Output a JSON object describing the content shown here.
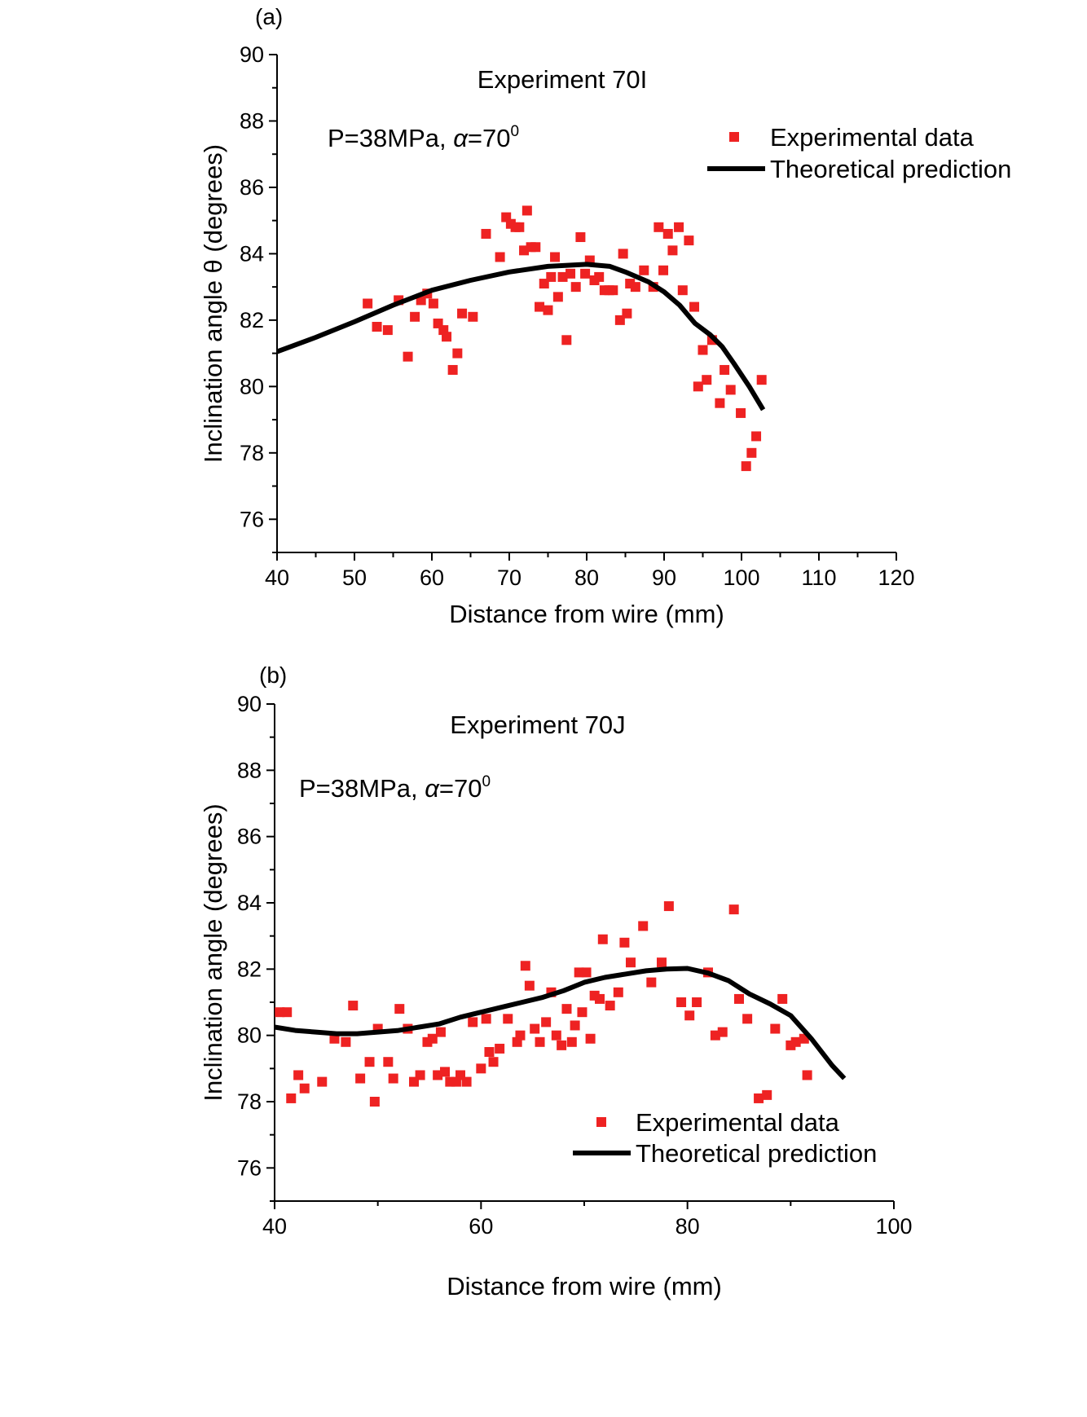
{
  "chart_data": [
    {
      "type": "scatter",
      "panel_label": "(a)",
      "annotation_title": "Experiment 70I",
      "params": {
        "prefix": "P=38MPa, ",
        "alpha": "α",
        "suffix": "=70",
        "sup": "0"
      },
      "xlabel": "Distance from wire (mm)",
      "ylabel_prefix": "Inclination angle ",
      "ylabel_symbol": "θ",
      "ylabel_suffix": " (degrees)",
      "xlim": [
        40,
        120
      ],
      "ylim": [
        75,
        90
      ],
      "xticks": [
        40,
        50,
        60,
        70,
        80,
        90,
        100,
        110,
        120
      ],
      "yticks": [
        76,
        78,
        80,
        82,
        84,
        86,
        88,
        90
      ],
      "legend_position": "top-right",
      "legend": {
        "experimental": "Experimental data",
        "theoretical": "Theoretical prediction"
      },
      "colors": {
        "experimental": "#ee2222",
        "theoretical": "#000000"
      },
      "series": [
        {
          "name": "Experimental data",
          "kind": "scatter",
          "points": [
            [
              51.7,
              82.5
            ],
            [
              52.9,
              81.8
            ],
            [
              54.3,
              81.7
            ],
            [
              55.7,
              82.6
            ],
            [
              56.9,
              80.9
            ],
            [
              57.8,
              82.1
            ],
            [
              58.6,
              82.6
            ],
            [
              59.4,
              82.8
            ],
            [
              60.2,
              82.5
            ],
            [
              60.8,
              81.9
            ],
            [
              61.5,
              81.7
            ],
            [
              61.9,
              81.5
            ],
            [
              62.7,
              80.5
            ],
            [
              63.3,
              81.0
            ],
            [
              63.9,
              82.2
            ],
            [
              65.3,
              82.1
            ],
            [
              67.0,
              84.6
            ],
            [
              68.8,
              83.9
            ],
            [
              69.6,
              85.1
            ],
            [
              70.2,
              84.9
            ],
            [
              70.8,
              84.8
            ],
            [
              71.3,
              84.8
            ],
            [
              71.9,
              84.1
            ],
            [
              72.3,
              85.3
            ],
            [
              72.8,
              84.2
            ],
            [
              73.4,
              84.2
            ],
            [
              73.9,
              82.4
            ],
            [
              74.5,
              83.1
            ],
            [
              75.0,
              82.3
            ],
            [
              75.4,
              83.3
            ],
            [
              75.9,
              83.9
            ],
            [
              76.3,
              82.7
            ],
            [
              76.9,
              83.3
            ],
            [
              77.4,
              81.4
            ],
            [
              77.9,
              83.4
            ],
            [
              78.6,
              83.0
            ],
            [
              79.2,
              84.5
            ],
            [
              79.8,
              83.4
            ],
            [
              80.4,
              83.8
            ],
            [
              81.0,
              83.2
            ],
            [
              81.6,
              83.3
            ],
            [
              82.3,
              82.9
            ],
            [
              82.9,
              82.9
            ],
            [
              83.4,
              82.9
            ],
            [
              84.3,
              82.0
            ],
            [
              84.7,
              84.0
            ],
            [
              85.2,
              82.2
            ],
            [
              85.6,
              83.1
            ],
            [
              86.3,
              83.0
            ],
            [
              87.4,
              83.5
            ],
            [
              88.6,
              83.0
            ],
            [
              89.3,
              84.8
            ],
            [
              89.9,
              83.5
            ],
            [
              90.5,
              84.6
            ],
            [
              91.1,
              84.1
            ],
            [
              91.9,
              84.8
            ],
            [
              92.4,
              82.9
            ],
            [
              93.2,
              84.4
            ],
            [
              93.9,
              82.4
            ],
            [
              94.4,
              80.0
            ],
            [
              95.0,
              81.1
            ],
            [
              95.5,
              80.2
            ],
            [
              96.2,
              81.4
            ],
            [
              97.2,
              79.5
            ],
            [
              97.8,
              80.5
            ],
            [
              98.6,
              79.9
            ],
            [
              99.9,
              79.2
            ],
            [
              100.6,
              77.6
            ],
            [
              101.3,
              78.0
            ],
            [
              101.9,
              78.5
            ],
            [
              102.6,
              80.2
            ]
          ]
        },
        {
          "name": "Theoretical prediction",
          "kind": "line",
          "points": [
            [
              40.0,
              81.05
            ],
            [
              42.0,
              81.22
            ],
            [
              45.0,
              81.48
            ],
            [
              50.0,
              81.95
            ],
            [
              55.0,
              82.45
            ],
            [
              60.0,
              82.9
            ],
            [
              65.0,
              83.2
            ],
            [
              70.0,
              83.45
            ],
            [
              75.0,
              83.62
            ],
            [
              80.0,
              83.68
            ],
            [
              83.0,
              83.62
            ],
            [
              85.0,
              83.45
            ],
            [
              88.0,
              83.15
            ],
            [
              90.0,
              82.85
            ],
            [
              92.0,
              82.45
            ],
            [
              94.0,
              81.9
            ],
            [
              96.0,
              81.55
            ],
            [
              97.5,
              81.2
            ],
            [
              99.0,
              80.7
            ],
            [
              101.0,
              80.0
            ],
            [
              102.8,
              79.3
            ]
          ]
        }
      ]
    },
    {
      "type": "scatter",
      "panel_label": "(b)",
      "annotation_title": "Experiment 70J",
      "params": {
        "prefix": "P=38MPa, ",
        "alpha": "α",
        "suffix": "=70",
        "sup": "0"
      },
      "xlabel": "Distance from wire (mm)",
      "ylabel_prefix": "Inclination angle (degrees)",
      "ylabel_symbol": "",
      "ylabel_suffix": "",
      "xlim": [
        40,
        100
      ],
      "ylim": [
        75,
        90
      ],
      "xticks": [
        40,
        60,
        80,
        100
      ],
      "yticks": [
        76,
        78,
        80,
        82,
        84,
        86,
        88,
        90
      ],
      "legend_position": "bottom-right",
      "legend": {
        "experimental": "Experimental data",
        "theoretical": "Theoretical prediction"
      },
      "colors": {
        "experimental": "#ee2222",
        "theoretical": "#000000"
      },
      "series": [
        {
          "name": "Experimental data",
          "kind": "scatter",
          "points": [
            [
              40.5,
              80.7
            ],
            [
              41.2,
              80.7
            ],
            [
              41.6,
              78.1
            ],
            [
              42.3,
              78.8
            ],
            [
              42.9,
              78.4
            ],
            [
              44.6,
              78.6
            ],
            [
              45.8,
              79.9
            ],
            [
              46.9,
              79.8
            ],
            [
              47.6,
              80.9
            ],
            [
              48.3,
              78.7
            ],
            [
              49.2,
              79.2
            ],
            [
              49.7,
              78.0
            ],
            [
              50.0,
              80.2
            ],
            [
              51.0,
              79.2
            ],
            [
              51.5,
              78.7
            ],
            [
              52.1,
              80.8
            ],
            [
              52.9,
              80.2
            ],
            [
              53.5,
              78.6
            ],
            [
              54.1,
              78.8
            ],
            [
              54.8,
              79.8
            ],
            [
              55.3,
              79.9
            ],
            [
              55.8,
              78.8
            ],
            [
              56.1,
              80.1
            ],
            [
              56.5,
              78.9
            ],
            [
              57.0,
              78.6
            ],
            [
              57.6,
              78.6
            ],
            [
              58.0,
              78.8
            ],
            [
              58.6,
              78.6
            ],
            [
              59.2,
              80.4
            ],
            [
              60.0,
              79.0
            ],
            [
              60.5,
              80.5
            ],
            [
              60.8,
              79.5
            ],
            [
              61.2,
              79.2
            ],
            [
              61.8,
              79.6
            ],
            [
              62.6,
              80.5
            ],
            [
              63.5,
              79.8
            ],
            [
              63.8,
              80.0
            ],
            [
              64.3,
              82.1
            ],
            [
              64.7,
              81.5
            ],
            [
              65.2,
              80.2
            ],
            [
              65.7,
              79.8
            ],
            [
              66.3,
              80.4
            ],
            [
              66.8,
              81.3
            ],
            [
              67.3,
              80.0
            ],
            [
              67.8,
              79.7
            ],
            [
              68.3,
              80.8
            ],
            [
              68.8,
              79.8
            ],
            [
              69.1,
              80.3
            ],
            [
              69.5,
              81.9
            ],
            [
              69.8,
              80.7
            ],
            [
              70.2,
              81.9
            ],
            [
              70.6,
              79.9
            ],
            [
              71.0,
              81.2
            ],
            [
              71.5,
              81.1
            ],
            [
              71.8,
              82.9
            ],
            [
              72.5,
              80.9
            ],
            [
              73.3,
              81.3
            ],
            [
              73.9,
              82.8
            ],
            [
              74.5,
              82.2
            ],
            [
              75.7,
              83.3
            ],
            [
              76.5,
              81.6
            ],
            [
              77.5,
              82.2
            ],
            [
              78.2,
              83.9
            ],
            [
              79.4,
              81.0
            ],
            [
              80.2,
              80.6
            ],
            [
              80.9,
              81.0
            ],
            [
              82.0,
              81.9
            ],
            [
              82.7,
              80.0
            ],
            [
              83.4,
              80.1
            ],
            [
              84.5,
              83.8
            ],
            [
              85.0,
              81.1
            ],
            [
              85.8,
              80.5
            ],
            [
              86.9,
              78.1
            ],
            [
              87.7,
              78.2
            ],
            [
              88.5,
              80.2
            ],
            [
              89.2,
              81.1
            ],
            [
              90.0,
              79.7
            ],
            [
              90.5,
              79.8
            ],
            [
              91.3,
              79.9
            ],
            [
              91.6,
              78.8
            ]
          ]
        },
        {
          "name": "Theoretical prediction",
          "kind": "line",
          "points": [
            [
              40.0,
              80.25
            ],
            [
              42.0,
              80.15
            ],
            [
              44.0,
              80.1
            ],
            [
              46.0,
              80.05
            ],
            [
              48.0,
              80.05
            ],
            [
              50.0,
              80.1
            ],
            [
              52.0,
              80.15
            ],
            [
              54.0,
              80.25
            ],
            [
              56.0,
              80.35
            ],
            [
              58.0,
              80.55
            ],
            [
              60.0,
              80.7
            ],
            [
              62.0,
              80.85
            ],
            [
              64.0,
              81.0
            ],
            [
              66.0,
              81.15
            ],
            [
              68.0,
              81.35
            ],
            [
              70.0,
              81.6
            ],
            [
              72.0,
              81.75
            ],
            [
              74.0,
              81.85
            ],
            [
              76.0,
              81.95
            ],
            [
              78.0,
              82.0
            ],
            [
              80.0,
              82.02
            ],
            [
              82.0,
              81.88
            ],
            [
              84.0,
              81.65
            ],
            [
              86.0,
              81.25
            ],
            [
              88.0,
              80.95
            ],
            [
              90.0,
              80.6
            ],
            [
              92.0,
              79.9
            ],
            [
              94.0,
              79.1
            ],
            [
              95.2,
              78.7
            ]
          ]
        }
      ]
    }
  ]
}
